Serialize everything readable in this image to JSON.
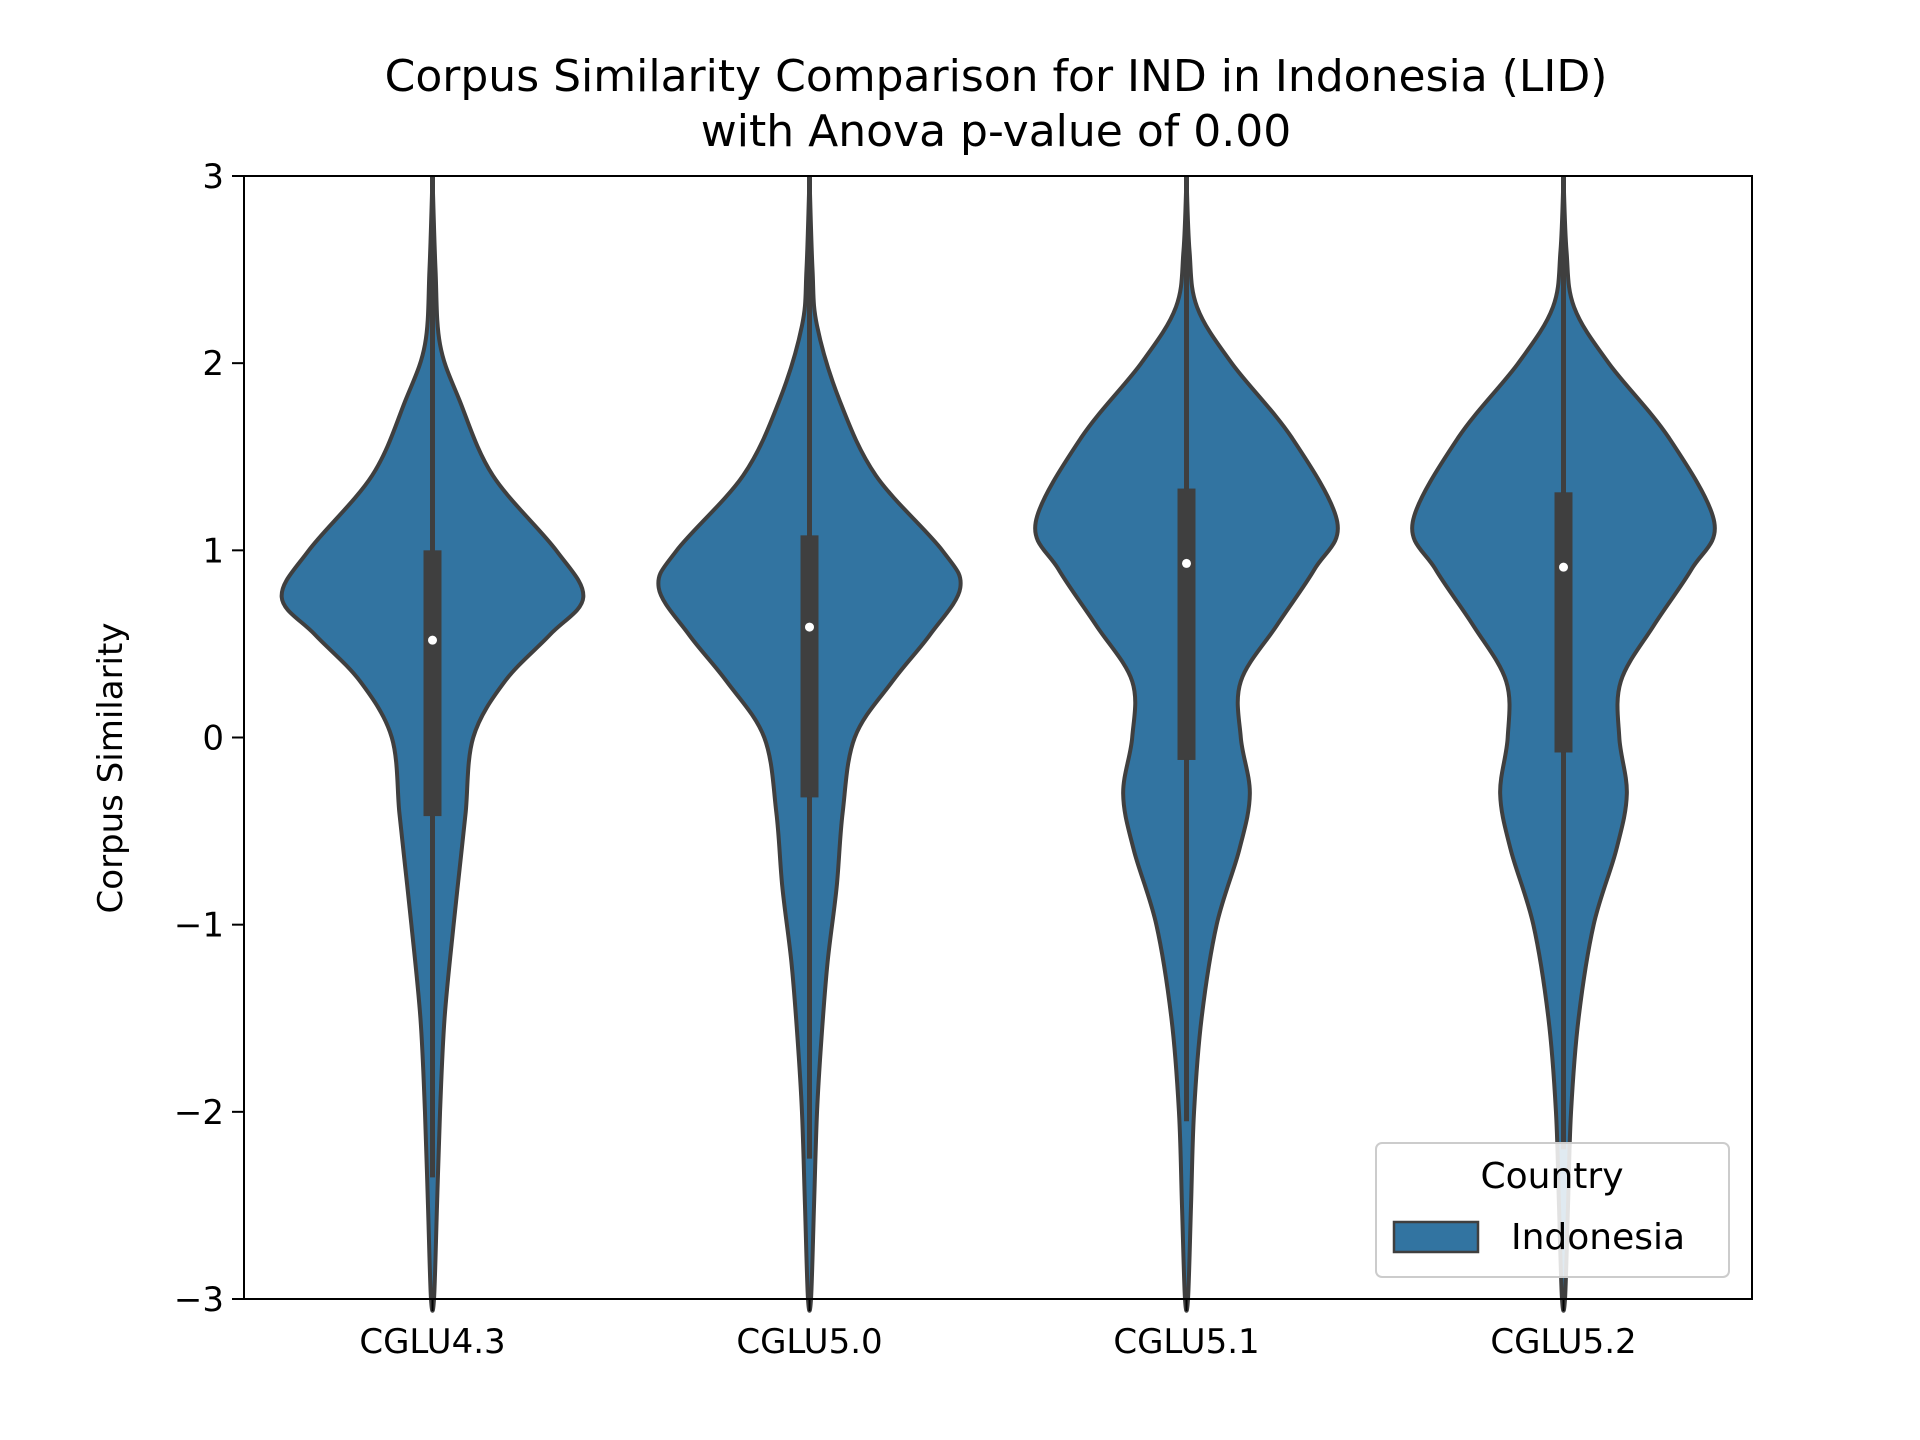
{
  "chart_data": {
    "type": "violin",
    "title_lines": [
      "Corpus Similarity Comparison for IND in Indonesia (LID)",
      "with Anova p-value of 0.00"
    ],
    "xlabel": "",
    "ylabel": "Corpus Similarity",
    "ylim": [
      -3,
      3
    ],
    "yticks": [
      -3,
      -2,
      -1,
      0,
      1,
      2,
      3
    ],
    "ytick_labels": [
      "−3",
      "−2",
      "−1",
      "0",
      "1",
      "2",
      "3"
    ],
    "categories": [
      "CGLU4.3",
      "CGLU5.0",
      "CGLU5.1",
      "CGLU5.2"
    ],
    "fill_color": "#3274a1",
    "edge_color": "#3f3f3f",
    "legend": {
      "title": "Country",
      "entries": [
        "Indonesia"
      ],
      "placement": "lower-right"
    },
    "series": [
      {
        "name": "Indonesia",
        "violins": [
          {
            "category": "CGLU4.3",
            "median": 0.52,
            "q1": -0.42,
            "q3": 1.0,
            "whisker_low": -2.35,
            "whisker_high": 3.0,
            "density_profile": [
              [
                3.0,
                0.0
              ],
              [
                2.5,
                0.02
              ],
              [
                2.1,
                0.05
              ],
              [
                1.8,
                0.18
              ],
              [
                1.4,
                0.4
              ],
              [
                1.0,
                0.82
              ],
              [
                0.75,
                1.0
              ],
              [
                0.55,
                0.78
              ],
              [
                0.3,
                0.48
              ],
              [
                0.0,
                0.27
              ],
              [
                -0.4,
                0.22
              ],
              [
                -0.7,
                0.18
              ],
              [
                -1.0,
                0.14
              ],
              [
                -1.5,
                0.08
              ],
              [
                -2.0,
                0.05
              ],
              [
                -2.5,
                0.03
              ],
              [
                -3.0,
                0.01
              ]
            ]
          },
          {
            "category": "CGLU5.0",
            "median": 0.59,
            "q1": -0.32,
            "q3": 1.08,
            "whisker_low": -2.25,
            "whisker_high": 3.0,
            "density_profile": [
              [
                3.0,
                0.0
              ],
              [
                2.5,
                0.02
              ],
              [
                2.2,
                0.05
              ],
              [
                1.8,
                0.2
              ],
              [
                1.4,
                0.44
              ],
              [
                1.0,
                0.88
              ],
              [
                0.8,
                1.0
              ],
              [
                0.55,
                0.8
              ],
              [
                0.3,
                0.55
              ],
              [
                0.0,
                0.3
              ],
              [
                -0.4,
                0.22
              ],
              [
                -0.8,
                0.18
              ],
              [
                -1.2,
                0.12
              ],
              [
                -1.6,
                0.08
              ],
              [
                -2.0,
                0.05
              ],
              [
                -2.5,
                0.03
              ],
              [
                -3.0,
                0.01
              ]
            ]
          },
          {
            "category": "CGLU5.1",
            "median": 0.93,
            "q1": -0.12,
            "q3": 1.33,
            "whisker_low": -2.05,
            "whisker_high": 3.0,
            "density_profile": [
              [
                3.0,
                0.0
              ],
              [
                2.6,
                0.02
              ],
              [
                2.3,
                0.07
              ],
              [
                2.0,
                0.3
              ],
              [
                1.6,
                0.7
              ],
              [
                1.15,
                1.0
              ],
              [
                0.9,
                0.85
              ],
              [
                0.6,
                0.6
              ],
              [
                0.3,
                0.36
              ],
              [
                0.0,
                0.36
              ],
              [
                -0.3,
                0.42
              ],
              [
                -0.6,
                0.35
              ],
              [
                -1.0,
                0.2
              ],
              [
                -1.5,
                0.1
              ],
              [
                -2.0,
                0.05
              ],
              [
                -2.5,
                0.03
              ],
              [
                -3.0,
                0.01
              ]
            ]
          },
          {
            "category": "CGLU5.2",
            "median": 0.91,
            "q1": -0.08,
            "q3": 1.31,
            "whisker_low": -2.2,
            "whisker_high": 3.0,
            "density_profile": [
              [
                3.0,
                0.0
              ],
              [
                2.6,
                0.02
              ],
              [
                2.3,
                0.07
              ],
              [
                2.0,
                0.3
              ],
              [
                1.6,
                0.7
              ],
              [
                1.15,
                1.0
              ],
              [
                0.9,
                0.85
              ],
              [
                0.6,
                0.6
              ],
              [
                0.3,
                0.38
              ],
              [
                0.0,
                0.37
              ],
              [
                -0.3,
                0.42
              ],
              [
                -0.6,
                0.35
              ],
              [
                -1.0,
                0.2
              ],
              [
                -1.5,
                0.1
              ],
              [
                -2.0,
                0.05
              ],
              [
                -2.5,
                0.03
              ],
              [
                -3.0,
                0.01
              ]
            ]
          }
        ]
      }
    ]
  }
}
